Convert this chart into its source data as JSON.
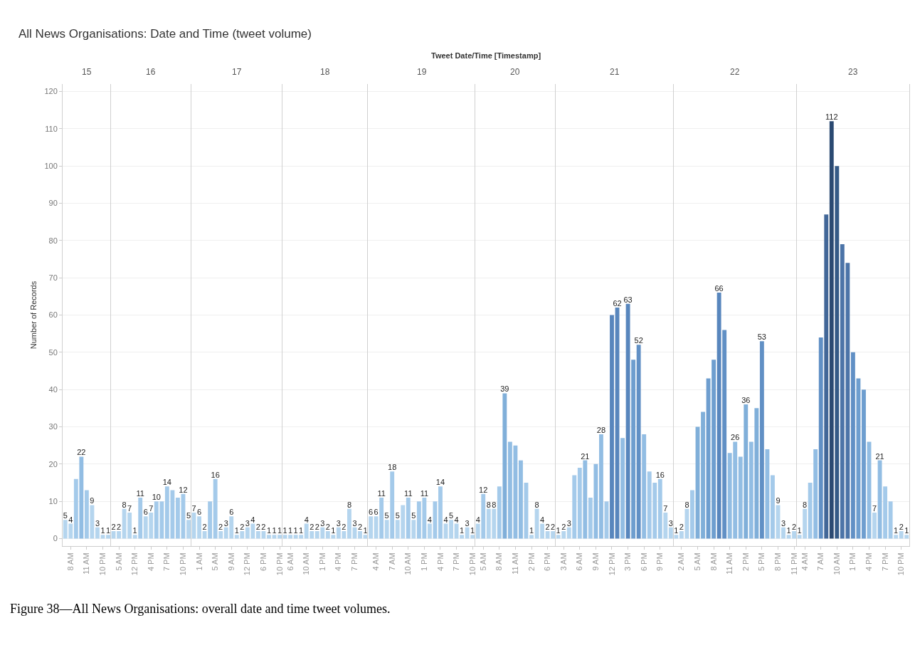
{
  "chart_data": [
    {
      "type": "bar",
      "title": "15",
      "ylabel": "Number of Records",
      "annotations": [
        "All News Organisations: Date and Time (tweet volume)",
        "Tweet Date/Time [Timestamp]",
        "Figure 38—All News Organisations: overall date and time tweet volumes."
      ],
      "ylim": [
        -2,
        122
      ],
      "yticks": [
        0,
        10,
        20,
        30,
        40,
        50,
        60,
        70,
        80,
        90,
        100,
        110,
        120
      ],
      "grid": "y",
      "categories": [
        null,
        "8 AM",
        null,
        null,
        "11 AM",
        null,
        null,
        "10 PM",
        null
      ],
      "values": [
        5,
        4,
        16,
        22,
        13,
        9,
        3,
        1,
        1
      ],
      "value_labels": [
        "5",
        "4",
        null,
        "22",
        null,
        "9",
        "3",
        "1",
        "1"
      ],
      "colors": [
        "#b5d5ee",
        "#b5d5ee",
        "#a4caea",
        "#92bde3",
        "#a4caea",
        "#b5d5ee",
        "#b5d5ee",
        "#b5d5ee",
        "#b5d5ee"
      ]
    },
    {
      "type": "bar",
      "title": "16",
      "ylim": [
        -2,
        122
      ],
      "yticks": [
        0,
        10,
        20,
        30,
        40,
        50,
        60,
        70,
        80,
        90,
        100,
        110,
        120
      ],
      "grid": "y",
      "tick_labels": "x",
      "categories": [
        null,
        "5 AM",
        null,
        null,
        "12 PM",
        null,
        null,
        "4 PM",
        null,
        null,
        "7 PM",
        null,
        null,
        "10 PM",
        null
      ],
      "values": [
        2,
        2,
        8,
        7,
        1,
        11,
        6,
        7,
        10,
        10,
        14,
        13,
        11,
        12,
        5
      ],
      "value_labels": [
        "2",
        "2",
        "8",
        "7",
        "1",
        "11",
        "6",
        "7",
        "10",
        null,
        "14",
        null,
        null,
        "12",
        "5"
      ],
      "colors": [
        "#b5d5ee",
        "#b5d5ee",
        "#b5d5ee",
        "#b5d5ee",
        "#b5d5ee",
        "#a4caea",
        "#b5d5ee",
        "#b5d5ee",
        "#a4caea",
        "#a4caea",
        "#a4caea",
        "#a4caea",
        "#a4caea",
        "#a4caea",
        "#b5d5ee"
      ]
    },
    {
      "type": "bar",
      "title": "17",
      "ylim": [
        -2,
        122
      ],
      "yticks": [
        0,
        10,
        20,
        30,
        40,
        50,
        60,
        70,
        80,
        90,
        100,
        110,
        120
      ],
      "grid": "y",
      "tick_labels": "x",
      "categories": [
        null,
        "1 AM",
        null,
        null,
        "5 AM",
        null,
        null,
        "9 AM",
        null,
        null,
        "12 PM",
        null,
        null,
        "6 PM",
        null,
        null,
        "10 PM"
      ],
      "values": [
        7,
        6,
        2,
        10,
        16,
        2,
        3,
        6,
        1,
        2,
        3,
        4,
        2,
        2,
        1,
        1,
        1
      ],
      "value_labels": [
        "7",
        "6",
        "2",
        null,
        "16",
        "2",
        "3",
        "6",
        "1",
        "2",
        "3",
        "4",
        "2",
        "2",
        "1",
        "1",
        "1"
      ],
      "colors": [
        "#b5d5ee",
        "#b5d5ee",
        "#b5d5ee",
        "#a4caea",
        "#a4caea",
        "#b5d5ee",
        "#b5d5ee",
        "#b5d5ee",
        "#b5d5ee",
        "#b5d5ee",
        "#b5d5ee",
        "#b5d5ee",
        "#b5d5ee",
        "#b5d5ee",
        "#b5d5ee",
        "#b5d5ee",
        "#b5d5ee"
      ]
    },
    {
      "type": "bar",
      "title": "18",
      "ylim": [
        -2,
        122
      ],
      "yticks": [
        0,
        10,
        20,
        30,
        40,
        50,
        60,
        70,
        80,
        90,
        100,
        110,
        120
      ],
      "grid": "y",
      "tick_labels": "x",
      "categories": [
        null,
        "6 AM",
        null,
        null,
        "10 AM",
        null,
        null,
        "1 PM",
        null,
        null,
        "4 PM",
        null,
        null,
        "7 PM",
        null,
        null
      ],
      "values": [
        1,
        1,
        1,
        1,
        4,
        2,
        2,
        3,
        2,
        1,
        3,
        2,
        8,
        3,
        2,
        1
      ],
      "value_labels": [
        "1",
        "1",
        "1",
        "1",
        "4",
        "2",
        "2",
        "3",
        "2",
        "1",
        "3",
        "2",
        "8",
        "3",
        "2",
        "1"
      ],
      "colors": [
        "#b5d5ee",
        "#b5d5ee",
        "#b5d5ee",
        "#b5d5ee",
        "#b5d5ee",
        "#b5d5ee",
        "#b5d5ee",
        "#b5d5ee",
        "#b5d5ee",
        "#b5d5ee",
        "#b5d5ee",
        "#b5d5ee",
        "#b5d5ee",
        "#b5d5ee",
        "#b5d5ee",
        "#b5d5ee"
      ]
    },
    {
      "type": "bar",
      "title": "19",
      "ylim": [
        -2,
        122
      ],
      "yticks": [
        0,
        10,
        20,
        30,
        40,
        50,
        60,
        70,
        80,
        90,
        100,
        110,
        120
      ],
      "grid": "y",
      "tick_labels": "x",
      "categories": [
        null,
        "4 AM",
        null,
        null,
        "7 AM",
        null,
        null,
        "10 AM",
        null,
        null,
        "1 PM",
        null,
        null,
        "4 PM",
        null,
        null,
        "7 PM",
        null,
        null,
        "10 PM"
      ],
      "values": [
        6,
        6,
        11,
        5,
        18,
        5,
        9,
        11,
        5,
        10,
        11,
        4,
        10,
        14,
        4,
        5,
        4,
        1,
        3,
        1
      ],
      "value_labels": [
        "6",
        "6",
        "11",
        "5",
        "18",
        "5",
        null,
        "11",
        "5",
        null,
        "11",
        "4",
        null,
        "14",
        "4",
        "5",
        "4",
        "1",
        "3",
        "1"
      ],
      "colors": [
        "#b5d5ee",
        "#b5d5ee",
        "#a4caea",
        "#b5d5ee",
        "#a4caea",
        "#b5d5ee",
        "#b5d5ee",
        "#a4caea",
        "#b5d5ee",
        "#a4caea",
        "#a4caea",
        "#b5d5ee",
        "#a4caea",
        "#a4caea",
        "#b5d5ee",
        "#b5d5ee",
        "#b5d5ee",
        "#b5d5ee",
        "#b5d5ee",
        "#b5d5ee"
      ]
    },
    {
      "type": "bar",
      "title": "20",
      "ylim": [
        -2,
        122
      ],
      "yticks": [
        0,
        10,
        20,
        30,
        40,
        50,
        60,
        70,
        80,
        90,
        100,
        110,
        120
      ],
      "grid": "y",
      "tick_labels": "x",
      "categories": [
        null,
        "5 AM",
        null,
        null,
        "8 AM",
        null,
        null,
        "11 AM",
        null,
        null,
        "2 PM",
        null,
        null,
        "6 PM",
        null
      ],
      "values": [
        4,
        12,
        8,
        8,
        14,
        39,
        26,
        25,
        21,
        15,
        1,
        8,
        4,
        2,
        2
      ],
      "value_labels": [
        "4",
        "12",
        "8",
        "8",
        null,
        "39",
        null,
        null,
        null,
        null,
        "1",
        "8",
        "4",
        "2",
        "2"
      ],
      "colors": [
        "#b5d5ee",
        "#a4caea",
        "#b5d5ee",
        "#b5d5ee",
        "#a4caea",
        "#80afd9",
        "#92bde3",
        "#92bde3",
        "#92bde3",
        "#a4caea",
        "#b5d5ee",
        "#b5d5ee",
        "#b5d5ee",
        "#b5d5ee",
        "#b5d5ee"
      ]
    },
    {
      "type": "bar",
      "title": "21",
      "ylim": [
        -2,
        122
      ],
      "yticks": [
        0,
        10,
        20,
        30,
        40,
        50,
        60,
        70,
        80,
        90,
        100,
        110,
        120
      ],
      "grid": "y",
      "tick_labels": "x",
      "categories": [
        null,
        "3 AM",
        null,
        null,
        "6 AM",
        null,
        null,
        "9 AM",
        null,
        null,
        "12 PM",
        null,
        null,
        "3 PM",
        null,
        null,
        "6 PM",
        null,
        null,
        "9 PM",
        null,
        null
      ],
      "values": [
        1,
        2,
        3,
        17,
        19,
        21,
        11,
        20,
        28,
        10,
        60,
        62,
        27,
        63,
        48,
        52,
        28,
        18,
        15,
        16,
        7,
        3
      ],
      "value_labels": [
        "1",
        "2",
        "3",
        null,
        null,
        "21",
        null,
        null,
        "28",
        null,
        null,
        "62",
        null,
        "63",
        null,
        "52",
        null,
        null,
        null,
        "16",
        "7",
        "3"
      ],
      "colors": [
        "#b5d5ee",
        "#b5d5ee",
        "#b5d5ee",
        "#a4caea",
        "#a4caea",
        "#92bde3",
        "#a4caea",
        "#92bde3",
        "#92bde3",
        "#a4caea",
        "#5886bd",
        "#5886bd",
        "#92bde3",
        "#5886bd",
        "#6e9ecf",
        "#6190c5",
        "#92bde3",
        "#a4caea",
        "#a4caea",
        "#a4caea",
        "#b5d5ee",
        "#b5d5ee"
      ]
    },
    {
      "type": "bar",
      "title": "22",
      "ylim": [
        -2,
        122
      ],
      "yticks": [
        0,
        10,
        20,
        30,
        40,
        50,
        60,
        70,
        80,
        90,
        100,
        110,
        120
      ],
      "grid": "y",
      "tick_labels": "x",
      "categories": [
        null,
        "2 AM",
        null,
        null,
        "5 AM",
        null,
        null,
        "8 AM",
        null,
        null,
        "11 AM",
        null,
        null,
        "2 PM",
        null,
        null,
        "5 PM",
        null,
        null,
        "8 PM",
        null,
        null,
        "11 PM"
      ],
      "values": [
        1,
        2,
        8,
        13,
        30,
        34,
        43,
        48,
        66,
        56,
        23,
        26,
        22,
        36,
        26,
        35,
        53,
        24,
        17,
        9,
        3,
        1,
        2
      ],
      "value_labels": [
        "1",
        "2",
        "8",
        null,
        null,
        null,
        null,
        null,
        "66",
        null,
        null,
        "26",
        null,
        "36",
        null,
        null,
        "53",
        null,
        null,
        "9",
        "3",
        "1",
        "2"
      ],
      "colors": [
        "#b5d5ee",
        "#b5d5ee",
        "#b5d5ee",
        "#a4caea",
        "#80afd9",
        "#80afd9",
        "#6e9ecf",
        "#6e9ecf",
        "#5886bd",
        "#6190c5",
        "#92bde3",
        "#92bde3",
        "#92bde3",
        "#80afd9",
        "#92bde3",
        "#80afd9",
        "#6190c5",
        "#92bde3",
        "#a4caea",
        "#b5d5ee",
        "#b5d5ee",
        "#b5d5ee",
        "#b5d5ee"
      ]
    },
    {
      "type": "bar",
      "title": "23",
      "ylim": [
        -2,
        122
      ],
      "yticks": [
        0,
        10,
        20,
        30,
        40,
        50,
        60,
        70,
        80,
        90,
        100,
        110,
        120
      ],
      "grid": "y",
      "tick_labels": "x",
      "categories": [
        null,
        "4 AM",
        null,
        null,
        "7 AM",
        null,
        null,
        "10 AM",
        null,
        null,
        "1 PM",
        null,
        null,
        "4 PM",
        null,
        null,
        "7 PM",
        null,
        null,
        "10 PM",
        null
      ],
      "values": [
        1,
        8,
        15,
        24,
        54,
        87,
        112,
        100,
        79,
        74,
        50,
        43,
        40,
        26,
        7,
        21,
        14,
        10,
        1,
        2,
        1
      ],
      "value_labels": [
        "1",
        "8",
        null,
        null,
        null,
        null,
        "112",
        null,
        null,
        null,
        null,
        null,
        null,
        null,
        "7",
        "21",
        null,
        null,
        "1",
        "2",
        "1"
      ],
      "colors": [
        "#b5d5ee",
        "#b5d5ee",
        "#a4caea",
        "#92bde3",
        "#6190c5",
        "#426798",
        "#2b4a72",
        "#355a86",
        "#4c74a8",
        "#4c74a8",
        "#6190c5",
        "#6e9ecf",
        "#6e9ecf",
        "#92bde3",
        "#b5d5ee",
        "#92bde3",
        "#a4caea",
        "#a4caea",
        "#b5d5ee",
        "#b5d5ee",
        "#b5d5ee"
      ]
    }
  ]
}
